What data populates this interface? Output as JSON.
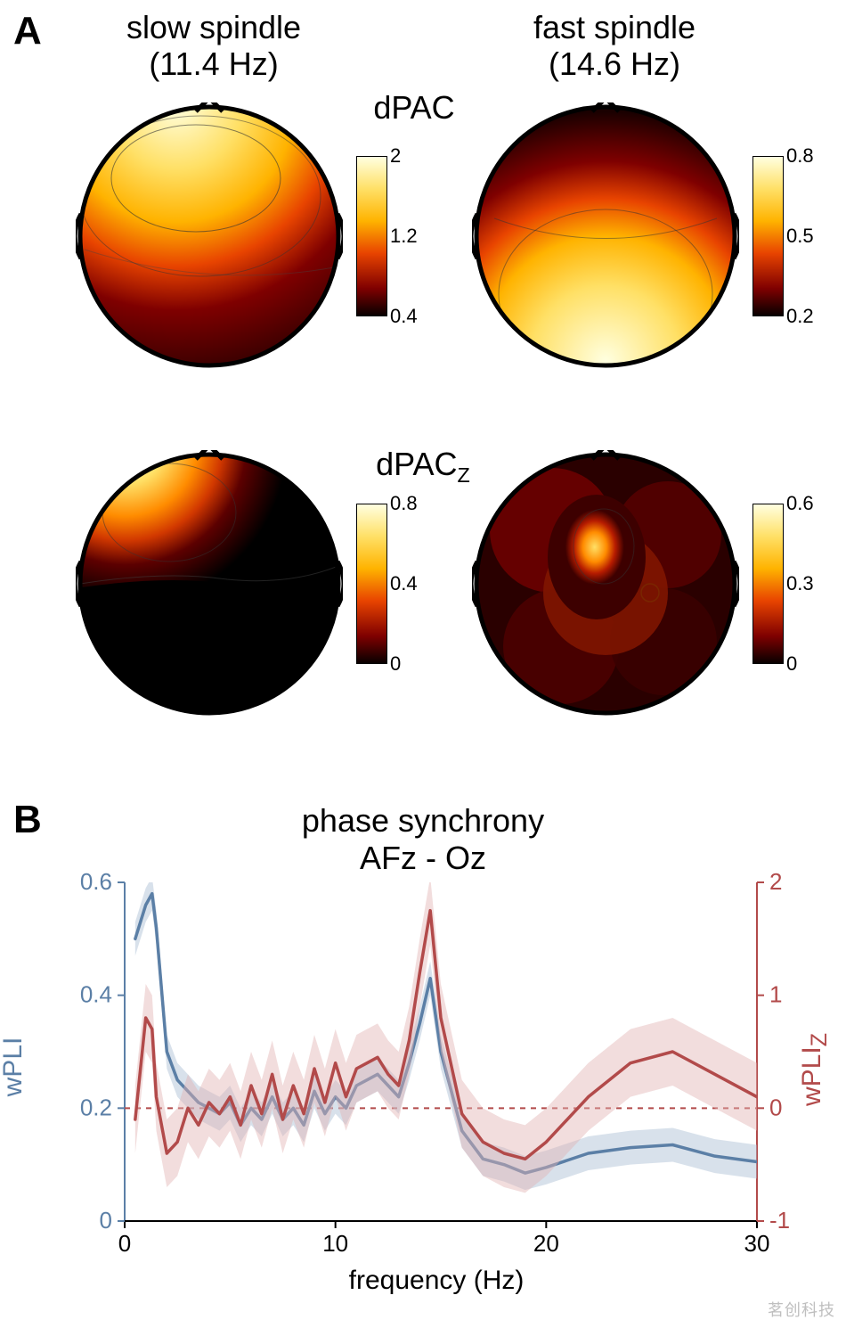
{
  "panelA": {
    "label": "A",
    "columns": {
      "slow": {
        "title_line1": "slow spindle",
        "title_line2": "(11.4 Hz)"
      },
      "fast": {
        "title_line1": "fast spindle",
        "title_line2": "(14.6 Hz)"
      }
    },
    "rows": {
      "dpac": {
        "label": "dPAC"
      },
      "dpacz": {
        "label_html": "dPAC<sub>Z</sub>"
      }
    },
    "topomaps": {
      "slow_dpac": {
        "type": "topomap",
        "colormap": "hot",
        "focus": "frontal",
        "colorbar": {
          "min": 0.4,
          "mid": 1.2,
          "max": 2
        },
        "head_color": "#000000",
        "outline_width": 3
      },
      "fast_dpac": {
        "type": "topomap",
        "colormap": "hot",
        "focus": "central-posterior",
        "colorbar": {
          "min": 0.2,
          "mid": 0.5,
          "max": 0.8
        },
        "head_color": "#000000",
        "outline_width": 3
      },
      "slow_dpacz": {
        "type": "topomap",
        "colormap": "hot",
        "focus": "left-frontal",
        "colorbar": {
          "min": 0,
          "mid": 0.4,
          "max": 0.8
        },
        "head_color": "#000000",
        "outline_width": 3
      },
      "fast_dpacz": {
        "type": "topomap",
        "colormap": "hot",
        "focus": "central-patch",
        "colorbar": {
          "min": 0,
          "mid": 0.3,
          "max": 0.6
        },
        "head_color": "#000000",
        "outline_width": 3
      }
    },
    "colormap_stops": [
      "#000000",
      "#3d0000",
      "#7f0000",
      "#b71c00",
      "#e84400",
      "#ff7a00",
      "#ffb300",
      "#ffe066",
      "#fffacd",
      "#ffffe0"
    ]
  },
  "panelB": {
    "label": "B",
    "title_line1": "phase synchrony",
    "title_line2": "AFz - Oz",
    "chart": {
      "type": "line",
      "xlabel": "frequency (Hz)",
      "ylabel_left": "wPLI",
      "ylabel_right_html": "wPLI<sub>Z</sub>",
      "xlim": [
        0,
        30
      ],
      "xticks": [
        0,
        10,
        20,
        30
      ],
      "ylim_left": [
        0,
        0.6
      ],
      "yticks_left": [
        0,
        0.2,
        0.4,
        0.6
      ],
      "ylim_right": [
        -1,
        2
      ],
      "yticks_right": [
        -1,
        0,
        1,
        2
      ],
      "background_color": "#ffffff",
      "axis_color_left": "#5b7fa6",
      "axis_color_right": "#b24a4a",
      "line_width": 3.5,
      "dashed_ref": {
        "y_right": 0,
        "color": "#b24a4a",
        "dash": "6,6"
      },
      "series": {
        "wPLI": {
          "color": "#5b7fa6",
          "shade_color": "#a9bdd2",
          "x": [
            0.5,
            1.0,
            1.3,
            1.5,
            2.0,
            2.5,
            3.0,
            3.5,
            4.0,
            4.5,
            5.0,
            5.5,
            6.0,
            6.5,
            7.0,
            7.5,
            8.0,
            8.5,
            9.0,
            9.5,
            10.0,
            10.5,
            11.0,
            11.5,
            12.0,
            12.5,
            13.0,
            13.5,
            14.0,
            14.5,
            15.0,
            16.0,
            17.0,
            18.0,
            19.0,
            20.0,
            22.0,
            24.0,
            26.0,
            28.0,
            30.0
          ],
          "y": [
            0.5,
            0.56,
            0.58,
            0.52,
            0.3,
            0.25,
            0.23,
            0.21,
            0.2,
            0.19,
            0.21,
            0.17,
            0.2,
            0.18,
            0.22,
            0.18,
            0.2,
            0.17,
            0.23,
            0.19,
            0.22,
            0.2,
            0.24,
            0.25,
            0.26,
            0.24,
            0.22,
            0.28,
            0.35,
            0.43,
            0.3,
            0.16,
            0.11,
            0.1,
            0.085,
            0.095,
            0.12,
            0.13,
            0.135,
            0.115,
            0.105
          ],
          "y_err": 0.03
        },
        "wPLIz": {
          "color": "#b24a4a",
          "shade_color": "#e3b3b3",
          "x": [
            0.5,
            1.0,
            1.3,
            1.5,
            2.0,
            2.5,
            3.0,
            3.5,
            4.0,
            4.5,
            5.0,
            5.5,
            6.0,
            6.5,
            7.0,
            7.5,
            8.0,
            8.5,
            9.0,
            9.5,
            10.0,
            10.5,
            11.0,
            11.5,
            12.0,
            12.5,
            13.0,
            13.5,
            14.0,
            14.5,
            15.0,
            16.0,
            17.0,
            18.0,
            19.0,
            20.0,
            22.0,
            24.0,
            26.0,
            28.0,
            30.0
          ],
          "y": [
            -0.1,
            0.8,
            0.7,
            0.1,
            -0.4,
            -0.3,
            0.0,
            -0.15,
            0.05,
            -0.05,
            0.1,
            -0.15,
            0.2,
            -0.05,
            0.3,
            -0.1,
            0.2,
            -0.05,
            0.35,
            0.05,
            0.4,
            0.1,
            0.35,
            0.4,
            0.45,
            0.3,
            0.2,
            0.6,
            1.2,
            1.75,
            0.8,
            -0.05,
            -0.3,
            -0.4,
            -0.45,
            -0.3,
            0.1,
            0.4,
            0.5,
            0.3,
            0.1
          ],
          "y_err": 0.3
        }
      }
    }
  },
  "watermark": "茗创科技",
  "colors": {
    "black": "#000000",
    "blue": "#5b7fa6",
    "red": "#b24a4a",
    "gray": "#bfbfbf"
  }
}
